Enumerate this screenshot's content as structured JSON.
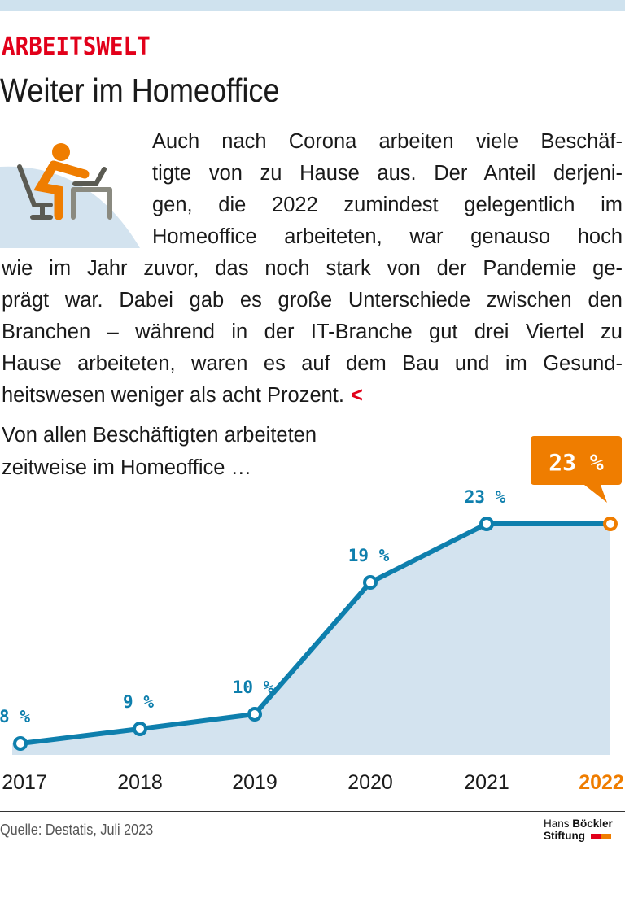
{
  "header": {
    "kicker": "ARBEITSWELT",
    "title": "Weiter im Homeoffice"
  },
  "icon": "person-at-desk-with-laptop-icon",
  "body_lines": [
    "Auch nach Corona arbeiten viele Beschäf-",
    "tigte von zu Hause aus. Der Anteil derjeni-",
    "gen, die 2022 zumindest gelegentlich im",
    "Homeoffice arbeiteten, war genauso hoch",
    "wie im Jahr zuvor, das noch stark von der Pandemie ge-",
    "prägt war. Dabei gab es große Unterschiede zwischen den",
    "Branchen – während in der IT-Branche gut drei Viertel zu",
    "Hause arbeiteten, waren es auf dem Bau und im Gesund-",
    "heitswesen weniger als acht Prozent."
  ],
  "body_end_marker": "<",
  "chart_intro": [
    "Von allen Beschäftigten arbeiteten",
    "zeitweise im Homeoffice …"
  ],
  "colors": {
    "line": "#0e7fad",
    "area": "#d3e3ef",
    "highlight": "#ef7d00",
    "kicker": "#e2001a"
  },
  "chart_data": {
    "type": "area",
    "categories": [
      "2017",
      "2018",
      "2019",
      "2020",
      "2021",
      "2022"
    ],
    "values": [
      8,
      9,
      10,
      19,
      23,
      23
    ],
    "data_labels": [
      "8 %",
      "9 %",
      "10 %",
      "19 %",
      "23 %",
      ""
    ],
    "callout": "23 %",
    "highlight_category": "2022",
    "unit": "%",
    "grid": false
  },
  "footer": {
    "source": "Quelle: Destatis, Juli 2023",
    "logo_line1_a": "Hans",
    "logo_line1_b": "Böckler",
    "logo_line2": "Stiftung"
  }
}
